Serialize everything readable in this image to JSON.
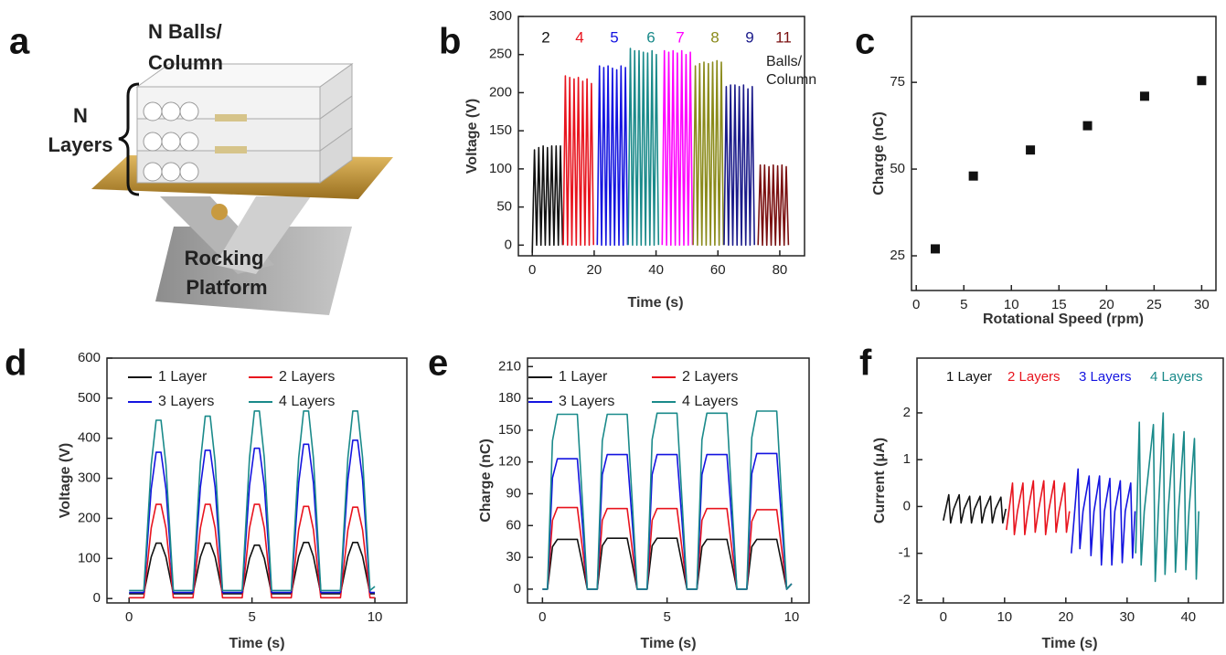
{
  "panel_labels": [
    "a",
    "b",
    "c",
    "d",
    "e",
    "f"
  ],
  "illustration": {
    "balls_label": [
      "N Balls/",
      "Column"
    ],
    "layers_label": [
      "N",
      "Layers"
    ],
    "platform_label": [
      "Rocking",
      "Platform"
    ]
  },
  "chart_data": [
    {
      "type": "line",
      "x_label": "Time (s)",
      "y_label": "Voltage (V)",
      "xlim": [
        -4.5,
        88
      ],
      "ylim": [
        -14,
        300
      ],
      "xticks": [
        0,
        20,
        40,
        60,
        80
      ],
      "yticks": [
        0,
        50,
        100,
        150,
        200,
        250,
        300
      ],
      "legend_style": "colored-text",
      "legend_title": [
        "Balls/",
        "Column"
      ],
      "series": [
        {
          "name": "2",
          "color": "#111111",
          "x": [
            0,
            0.7,
            1.4,
            2.1,
            2.8,
            3.5,
            4.2,
            4.9,
            5.6,
            6.3,
            7,
            7.7,
            8.4,
            9.1,
            9.8
          ],
          "values": [
            -10,
            125,
            0,
            128,
            0,
            130,
            0,
            128,
            0,
            130,
            0,
            130,
            0,
            130,
            0
          ]
        },
        {
          "name": "4",
          "color": "#e8141e",
          "x": [
            10,
            10.7,
            11.4,
            12.1,
            12.8,
            13.5,
            14.2,
            14.9,
            15.6,
            16.3,
            17,
            17.7,
            18.4,
            19.1,
            19.8
          ],
          "values": [
            0,
            222,
            0,
            220,
            0,
            218,
            0,
            220,
            0,
            215,
            0,
            218,
            0,
            212,
            0
          ]
        },
        {
          "name": "5",
          "color": "#1414e0",
          "x": [
            21,
            21.7,
            22.4,
            23.1,
            23.8,
            24.5,
            25.2,
            25.9,
            26.6,
            27.3,
            28,
            28.7,
            29.4,
            30.1,
            30.8
          ],
          "values": [
            0,
            235,
            0,
            233,
            0,
            235,
            0,
            232,
            0,
            230,
            0,
            235,
            0,
            233,
            0
          ]
        },
        {
          "name": "6",
          "color": "#1a8a8a",
          "x": [
            31,
            31.7,
            32.4,
            33.1,
            33.8,
            34.5,
            35.2,
            35.9,
            36.6,
            37.3,
            38,
            38.7,
            39.4,
            40.1,
            40.8
          ],
          "values": [
            0,
            258,
            0,
            255,
            0,
            255,
            0,
            253,
            0,
            252,
            0,
            255,
            0,
            250,
            0
          ]
        },
        {
          "name": "7",
          "color": "#ff00ff",
          "x": [
            42,
            42.7,
            43.4,
            44.1,
            44.8,
            45.5,
            46.2,
            46.9,
            47.6,
            48.3,
            49,
            49.7,
            50.4,
            51.1,
            51.8
          ],
          "values": [
            0,
            255,
            0,
            253,
            0,
            255,
            0,
            252,
            0,
            255,
            0,
            250,
            0,
            253,
            0
          ]
        },
        {
          "name": "8",
          "color": "#8a8a1a",
          "x": [
            52,
            52.7,
            53.4,
            54.1,
            54.8,
            55.5,
            56.2,
            56.9,
            57.6,
            58.3,
            59,
            59.7,
            60.4,
            61.1,
            61.8
          ],
          "values": [
            0,
            235,
            0,
            238,
            0,
            240,
            0,
            238,
            0,
            240,
            0,
            242,
            0,
            240,
            0
          ]
        },
        {
          "name": "9",
          "color": "#1a1a8a",
          "x": [
            62,
            62.7,
            63.4,
            64.1,
            64.8,
            65.5,
            66.2,
            66.9,
            67.6,
            68.3,
            69,
            69.7,
            70.4,
            71.1,
            71.8
          ],
          "values": [
            0,
            208,
            0,
            210,
            0,
            210,
            0,
            208,
            0,
            210,
            0,
            205,
            0,
            208,
            0
          ]
        },
        {
          "name": "11",
          "color": "#7a1010",
          "x": [
            73,
            73.7,
            74.4,
            75.1,
            75.8,
            76.5,
            77.2,
            77.9,
            78.6,
            79.3,
            80,
            80.7,
            81.4,
            82.1,
            82.8
          ],
          "values": [
            0,
            105,
            0,
            105,
            0,
            103,
            0,
            105,
            0,
            104,
            0,
            105,
            0,
            103,
            0
          ]
        }
      ]
    },
    {
      "type": "scatter",
      "x_label": "Rotational Speed (rpm)",
      "y_label": "Charge (nC)",
      "xlim": [
        -0.5,
        31.5
      ],
      "ylim": [
        15,
        94
      ],
      "xticks": [
        0,
        5,
        10,
        15,
        20,
        25,
        30
      ],
      "yticks": [
        25,
        50,
        75
      ],
      "color": "#111111",
      "x": [
        2,
        6,
        12,
        18,
        24,
        30
      ],
      "values": [
        27,
        48,
        55.5,
        62.5,
        71,
        75.5
      ]
    },
    {
      "type": "line",
      "x_label": "Time (s)",
      "y_label": "Voltage (V)",
      "xlim": [
        -0.9,
        11.3
      ],
      "ylim": [
        -11,
        600
      ],
      "xticks": [
        0,
        5,
        10
      ],
      "yticks": [
        0,
        100,
        200,
        300,
        400,
        500,
        600
      ],
      "legend_style": "line-sample",
      "x": [
        0,
        0.6,
        0.9,
        1.1,
        1.3,
        1.5,
        1.8,
        2.6,
        2.9,
        3.1,
        3.3,
        3.5,
        3.8,
        4.6,
        4.9,
        5.1,
        5.3,
        5.5,
        5.8,
        6.6,
        6.9,
        7.1,
        7.3,
        7.5,
        7.8,
        8.6,
        8.9,
        9.1,
        9.3,
        9.5,
        9.8,
        10
      ],
      "series": [
        {
          "name": "1 Layer",
          "color": "#111111",
          "values": [
            12,
            12,
            104,
            138,
            138,
            104,
            12,
            12,
            104,
            138,
            138,
            104,
            12,
            12,
            100,
            133,
            133,
            100,
            12,
            12,
            105,
            140,
            140,
            105,
            12,
            12,
            105,
            140,
            140,
            105,
            12,
            12
          ]
        },
        {
          "name": "2 Layers",
          "color": "#e8141e",
          "values": [
            2,
            2,
            176,
            235,
            235,
            176,
            2,
            2,
            176,
            235,
            235,
            176,
            2,
            2,
            176,
            235,
            235,
            176,
            2,
            2,
            172,
            230,
            230,
            172,
            2,
            2,
            171,
            228,
            228,
            171,
            2,
            2
          ]
        },
        {
          "name": "3 Layers",
          "color": "#1414e0",
          "values": [
            15,
            15,
            274,
            365,
            365,
            274,
            15,
            15,
            278,
            370,
            370,
            278,
            15,
            15,
            281,
            375,
            375,
            281,
            15,
            15,
            289,
            385,
            385,
            289,
            15,
            15,
            296,
            395,
            395,
            296,
            15,
            15
          ]
        },
        {
          "name": "4 Layers",
          "color": "#1a8a8a",
          "values": [
            20,
            20,
            334,
            445,
            445,
            334,
            20,
            20,
            341,
            455,
            455,
            341,
            20,
            20,
            351,
            468,
            468,
            351,
            20,
            20,
            351,
            468,
            468,
            351,
            20,
            20,
            351,
            468,
            468,
            351,
            20,
            30
          ]
        }
      ]
    },
    {
      "type": "line",
      "x_label": "Time (s)",
      "y_label": "Charge (nC)",
      "xlim": [
        -0.6,
        10.7
      ],
      "ylim": [
        -13,
        218
      ],
      "xticks": [
        0,
        5,
        10
      ],
      "yticks": [
        0,
        30,
        60,
        90,
        120,
        150,
        180,
        210
      ],
      "legend_style": "line-sample",
      "x": [
        0,
        0.2,
        0.4,
        0.6,
        1.4,
        1.6,
        1.8,
        2.2,
        2.4,
        2.6,
        3.4,
        3.6,
        3.8,
        4.2,
        4.4,
        4.6,
        5.4,
        5.6,
        5.8,
        6.2,
        6.4,
        6.6,
        7.4,
        7.6,
        7.8,
        8.2,
        8.4,
        8.6,
        9.4,
        9.6,
        9.8,
        10
      ],
      "series": [
        {
          "name": "1 Layer",
          "color": "#111111",
          "values": [
            0,
            0,
            40,
            47,
            47,
            24,
            0,
            0,
            41,
            48,
            48,
            24,
            0,
            0,
            41,
            48,
            48,
            24,
            0,
            0,
            40,
            47,
            47,
            24,
            0,
            0,
            40,
            47,
            47,
            24,
            0,
            5
          ]
        },
        {
          "name": "2 Layers",
          "color": "#e8141e",
          "values": [
            0,
            0,
            65,
            77,
            77,
            39,
            0,
            0,
            65,
            76,
            76,
            38,
            0,
            0,
            65,
            76,
            76,
            38,
            0,
            0,
            65,
            76,
            76,
            38,
            0,
            0,
            64,
            75,
            75,
            38,
            0,
            5
          ]
        },
        {
          "name": "3 Layers",
          "color": "#1414e0",
          "values": [
            0,
            0,
            105,
            123,
            123,
            62,
            0,
            0,
            108,
            127,
            127,
            64,
            0,
            0,
            108,
            127,
            127,
            64,
            0,
            0,
            108,
            127,
            127,
            64,
            0,
            0,
            109,
            128,
            128,
            64,
            0,
            5
          ]
        },
        {
          "name": "4 Layers",
          "color": "#1a8a8a",
          "values": [
            0,
            0,
            140,
            165,
            165,
            83,
            0,
            0,
            140,
            165,
            165,
            83,
            0,
            0,
            141,
            166,
            166,
            83,
            0,
            0,
            141,
            166,
            166,
            83,
            0,
            0,
            143,
            168,
            168,
            84,
            0,
            5
          ]
        }
      ]
    },
    {
      "type": "line",
      "x_label": "Time (s)",
      "y_label": "Current (μA)",
      "xlim": [
        -4.3,
        45.7
      ],
      "ylim": [
        -2.06,
        3.17
      ],
      "xticks": [
        0,
        10,
        20,
        30,
        40
      ],
      "yticks": [
        -2,
        -1,
        0,
        1,
        2
      ],
      "legend_style": "colored-text",
      "series": [
        {
          "name": "1 Layer",
          "color": "#111111",
          "x": [
            0,
            0.9,
            1.2,
            1.7,
            2.6,
            2.9,
            3.4,
            4.3,
            4.6,
            5.1,
            6.0,
            6.3,
            6.8,
            7.7,
            8.0,
            8.5,
            9.4,
            9.7,
            10.2
          ],
          "values": [
            -0.3,
            0.25,
            -0.35,
            -0.05,
            0.25,
            -0.35,
            -0.05,
            0.22,
            -0.35,
            -0.05,
            0.22,
            -0.35,
            -0.05,
            0.22,
            -0.35,
            -0.05,
            0.2,
            -0.35,
            -0.05
          ]
        },
        {
          "name": "2 Layers",
          "color": "#e8141e",
          "x": [
            10.3,
            11.3,
            11.6,
            12.1,
            13.0,
            13.3,
            13.8,
            14.7,
            15.0,
            15.5,
            16.4,
            16.7,
            17.2,
            18.1,
            18.4,
            18.9,
            19.8,
            20.1,
            20.6
          ],
          "values": [
            -0.5,
            0.5,
            -0.6,
            -0.1,
            0.5,
            -0.6,
            -0.1,
            0.55,
            -0.55,
            -0.1,
            0.55,
            -0.6,
            -0.1,
            0.55,
            -0.55,
            -0.1,
            0.5,
            -0.55,
            -0.1
          ]
        },
        {
          "name": "3 Layers",
          "color": "#1414e0",
          "x": [
            20.9,
            22.0,
            22.3,
            22.8,
            23.8,
            24.1,
            24.6,
            25.5,
            25.8,
            26.3,
            27.2,
            27.5,
            28.0,
            28.9,
            29.2,
            29.7,
            30.6,
            30.9,
            31.3
          ],
          "values": [
            -1.0,
            0.8,
            -0.9,
            -0.1,
            0.65,
            -1.05,
            -0.1,
            0.65,
            -1.25,
            -0.1,
            0.6,
            -1.25,
            -0.1,
            0.55,
            -1.2,
            -0.1,
            0.5,
            -1.1,
            -0.1
          ]
        },
        {
          "name": "4 Layers",
          "color": "#1a8a8a",
          "x": [
            31.4,
            32.0,
            32.3,
            32.8,
            34.3,
            34.6,
            35.1,
            35.9,
            36.2,
            36.7,
            37.6,
            37.9,
            38.4,
            39.3,
            39.6,
            40.1,
            41.0,
            41.3,
            41.7
          ],
          "values": [
            -1.0,
            1.8,
            -1.25,
            -0.1,
            1.75,
            -1.6,
            -0.1,
            2.0,
            -1.45,
            -0.1,
            1.55,
            -1.4,
            -0.1,
            1.6,
            -1.35,
            -0.1,
            1.45,
            -1.55,
            -0.1
          ]
        }
      ]
    }
  ]
}
